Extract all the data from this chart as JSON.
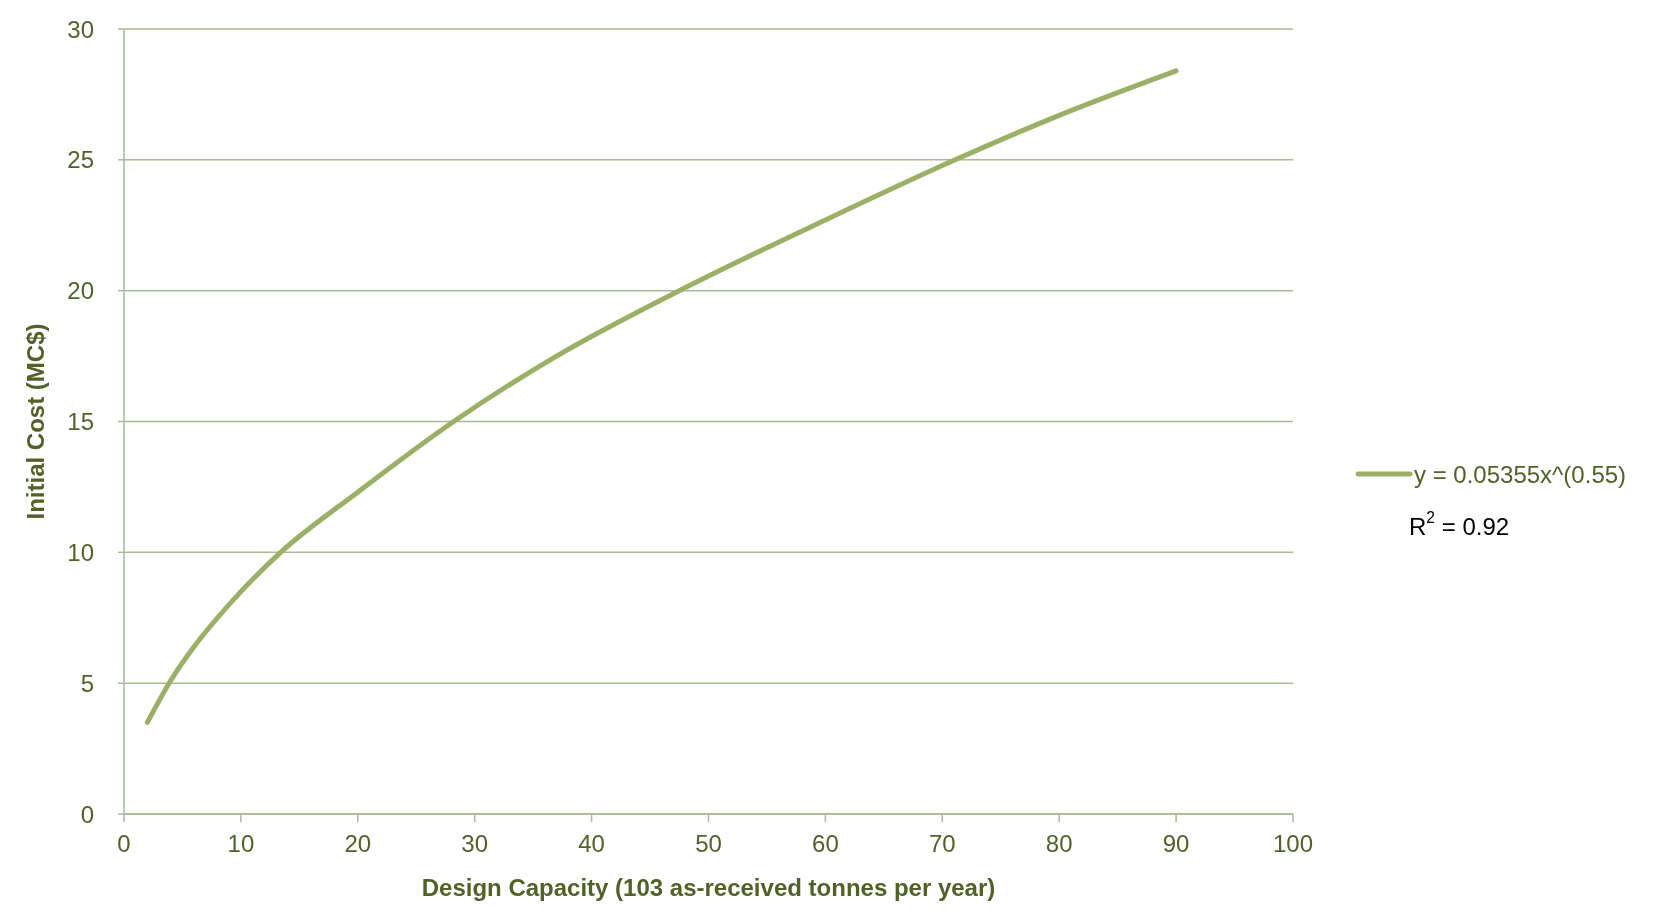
{
  "chart_data": {
    "type": "line",
    "xlabel": "Design Capacity (103 as-received tonnes per year)",
    "ylabel": "Initial Cost (MC$)",
    "x": [
      2,
      4,
      6,
      8,
      10,
      13.4,
      20,
      28.2,
      37,
      47.5,
      60,
      71.1,
      80,
      90
    ],
    "series": [
      {
        "name": "y = 0.05355x^(0.55)",
        "color": "#9bb067",
        "values": [
          3.5,
          5.1,
          6.4,
          7.5,
          8.5,
          10,
          12.3,
          15,
          17.5,
          20,
          22.7,
          25,
          26.7,
          28.4
        ]
      }
    ],
    "xlim": [
      0,
      100
    ],
    "ylim": [
      0,
      30
    ],
    "xticks": [
      0,
      10,
      20,
      30,
      40,
      50,
      60,
      70,
      80,
      90,
      100
    ],
    "yticks": [
      0,
      5,
      10,
      15,
      20,
      25,
      30
    ],
    "grid": "y",
    "legend": "right",
    "annotations": [
      "R$^{2}$ = 0.92"
    ]
  }
}
